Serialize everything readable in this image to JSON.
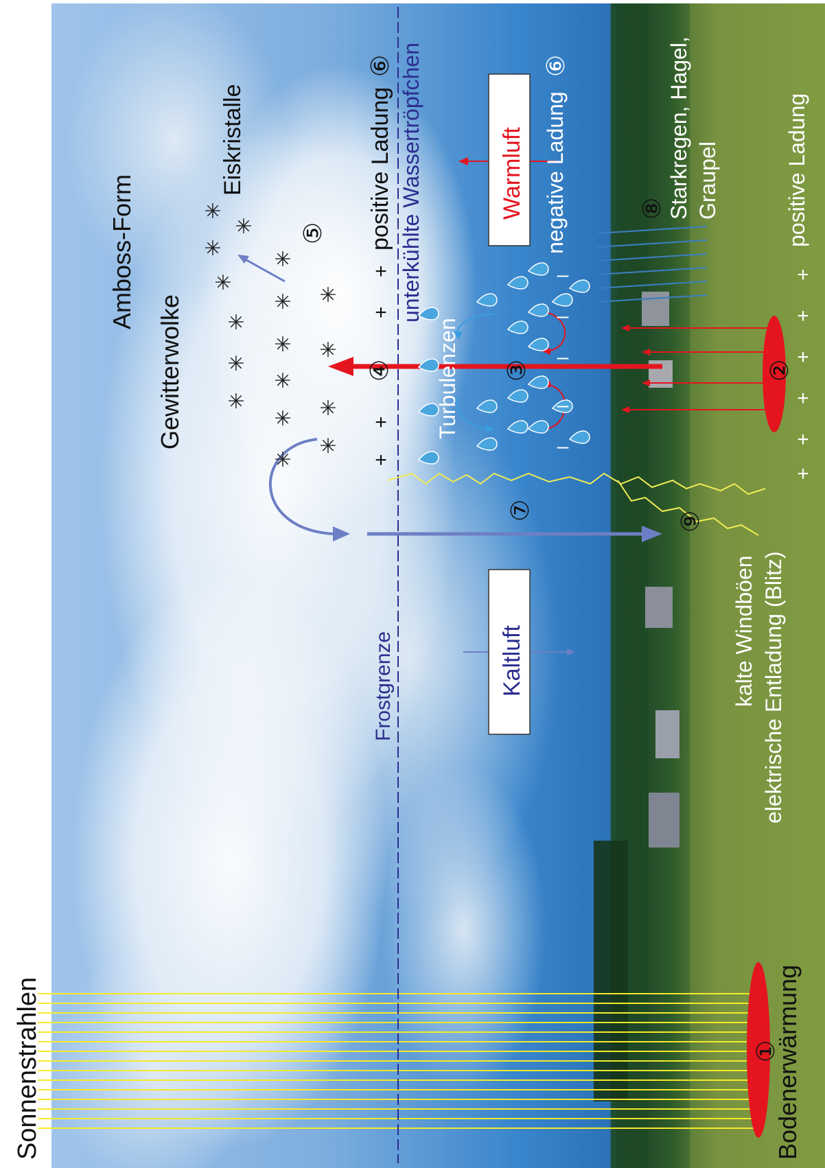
{
  "labels": {
    "sun_rays": "Sonnenstrahlen",
    "ground_heating": "Bodenerwärmung",
    "frost_line": "Frostgrenze",
    "cold_air": "Kaltluft",
    "warm_air": "Warmluft",
    "thunder_cloud": "Gewitterwolke",
    "anvil_shape": "Amboss-Form",
    "ice_crystals": "Eiskristalle",
    "positive_charge_top": "positive Ladung",
    "supercooled_droplets_prefix": "unterkühlte",
    "supercooled_droplets_word": "Wassertröpfchen",
    "turbulence": "Turbulenzen",
    "negative_charge": "negative Ladung",
    "heavy_rain_line1": "Starkregen, Hagel,",
    "heavy_rain_line2": "Graupel",
    "positive_charge_ground": "positive Ladung",
    "cold_gusts": "kalte Windböen",
    "electric_discharge": "elektrische Entladung (Blitz)"
  },
  "markers": {
    "m1": "①",
    "m2": "②",
    "m3": "③",
    "m4": "④",
    "m5": "⑤",
    "m6a": "⑥",
    "m6b": "⑥",
    "m7": "⑦",
    "m8": "⑧",
    "m9": "⑨"
  },
  "colors": {
    "warm": "#e4151f",
    "cold": "#2b2d8f",
    "cold_arrow": "#6d7fc4",
    "sun": "#f6ea2a",
    "lightning": "#f0ec55",
    "text_dark": "#111111",
    "text_light": "#ffffff"
  }
}
